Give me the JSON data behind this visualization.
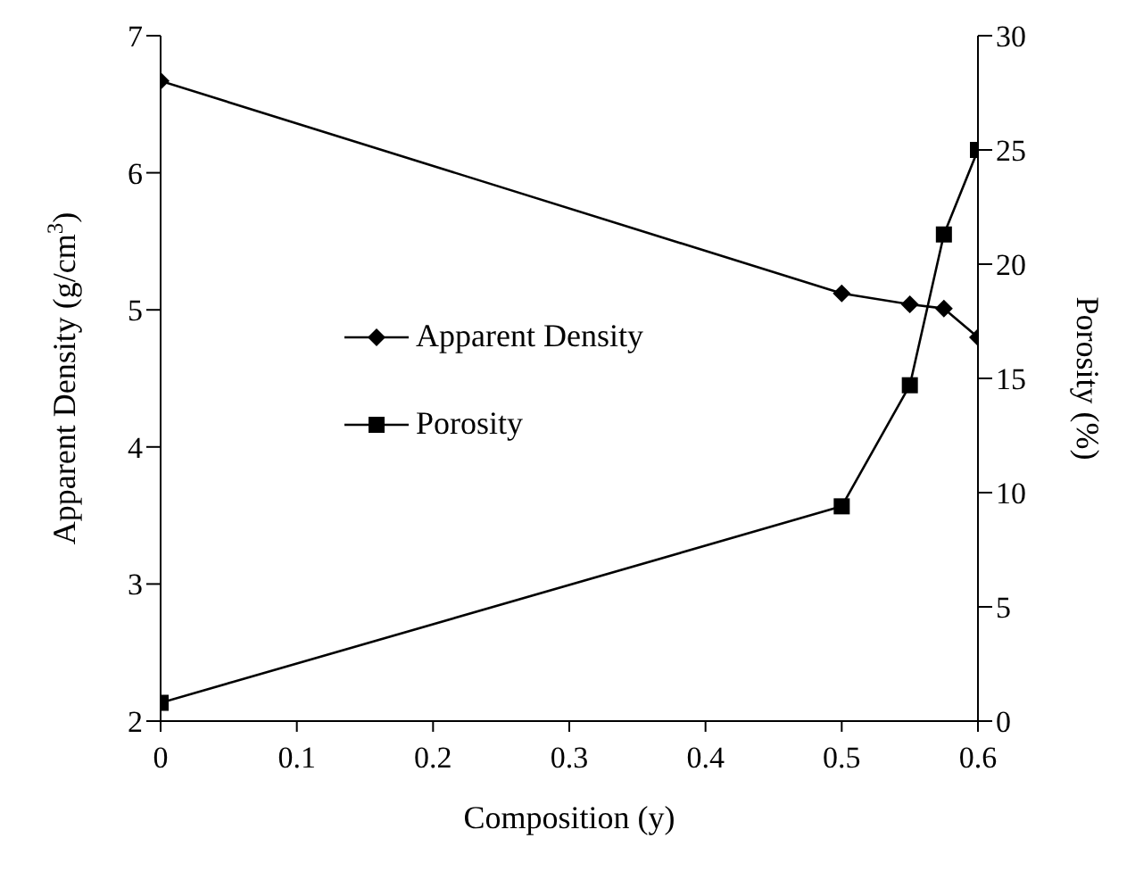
{
  "chart_data": {
    "type": "line",
    "xlabel": "Composition (y)",
    "ylabel": "Apparent Density (g/cm$^{3}$)",
    "y2label": "Porosity (%)",
    "x": [
      0,
      0.5,
      0.55,
      0.575,
      0.6
    ],
    "series": [
      {
        "name": "Apparent Density",
        "color": "#000000",
        "marker": "diamond",
        "values": [
          6.67,
          5.12,
          5.04,
          5.01,
          4.8
        ]
      },
      {
        "name": "Porosity",
        "color": "#000000",
        "marker": "square",
        "axis": "y2",
        "values": [
          0.8,
          9.4,
          14.7,
          21.3,
          25
        ]
      }
    ],
    "xlim": [
      0,
      0.6
    ],
    "xticks": [
      0,
      0.1,
      0.2,
      0.3,
      0.4,
      0.5,
      0.6
    ],
    "ylim": [
      2,
      7
    ],
    "yticks": [
      2,
      3,
      4,
      5,
      6,
      7
    ],
    "y2lim": [
      0,
      30
    ],
    "y2ticks": [
      0,
      5,
      10,
      15,
      20,
      25,
      30
    ],
    "legend": "left",
    "grid": false,
    "line_style": "solid"
  }
}
